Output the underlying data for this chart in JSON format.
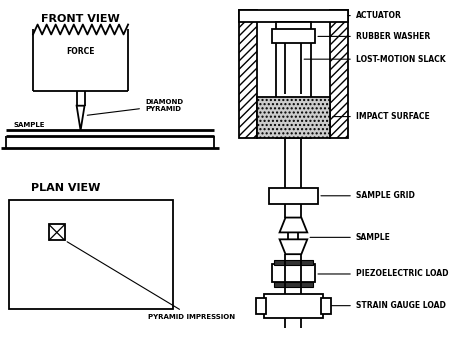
{
  "bg_color": "#ffffff",
  "line_color": "#000000",
  "front_view_title": "FRONT VIEW",
  "plan_view_title": "PLAN VIEW",
  "labels": {
    "force": "FORCE",
    "diamond_pyramid": "DIAMOND\nPYRAMID",
    "sample_fv": "SAMPLE",
    "actuator": "ACTUATOR",
    "rubber_washer": "RUBBER WASHER",
    "lost_motion": "LOST-MOTION SLACK",
    "impact_surface": "IMPACT SURFACE",
    "sample_grid": "SAMPLE GRID",
    "sample_rhs": "SAMPLE",
    "piezoelectric": "PIEZOELECTRIC LOAD",
    "strain_gauge": "STRAIN GAUGE LOAD",
    "pyramid_impression": "PYRAMID IMPRESSION"
  }
}
